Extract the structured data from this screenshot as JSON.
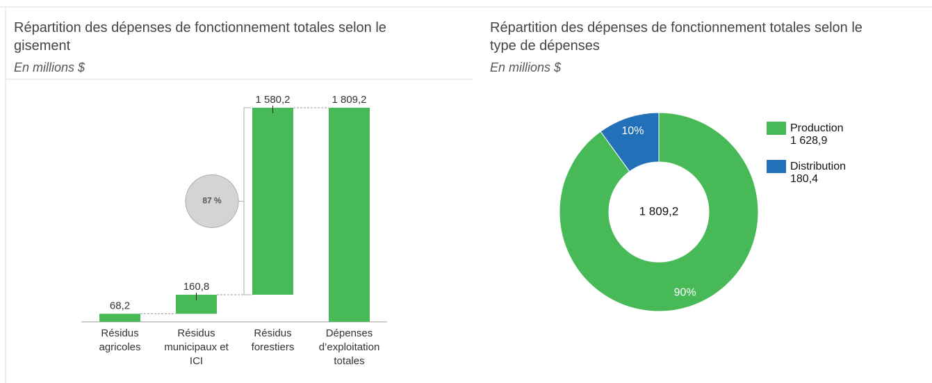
{
  "chart_data": [
    {
      "type": "waterfall",
      "title": "Répartition des dépenses de fonctionnement totales selon le gisement",
      "subtitle": "En millions $",
      "categories": [
        "Résidus agricoles",
        "Résidus municipaux et ICI",
        "Résidus forestiers",
        "Dépenses d’exploitation totales"
      ],
      "values": [
        68.2,
        160.8,
        1580.2,
        1809.2
      ],
      "value_labels": [
        "68,2",
        "160,8",
        "1 580,2",
        "1 809,2"
      ],
      "is_total": [
        false,
        false,
        false,
        true
      ],
      "color": "#47b957",
      "annotation": "87 %"
    },
    {
      "type": "donut",
      "title": "Répartition des dépenses de fonctionnement totales selon le type de dépenses",
      "subtitle": "En millions $",
      "series": [
        {
          "name": "Production",
          "color": "#47b957",
          "values": [
            1628.9
          ]
        },
        {
          "name": "Distribution",
          "color": "#2170b8",
          "values": [
            180.4
          ]
        }
      ],
      "value_labels": [
        "1 628,9",
        "180,4"
      ],
      "percent_labels": [
        "90%",
        "10%"
      ],
      "total_label": "1 809,2"
    }
  ]
}
